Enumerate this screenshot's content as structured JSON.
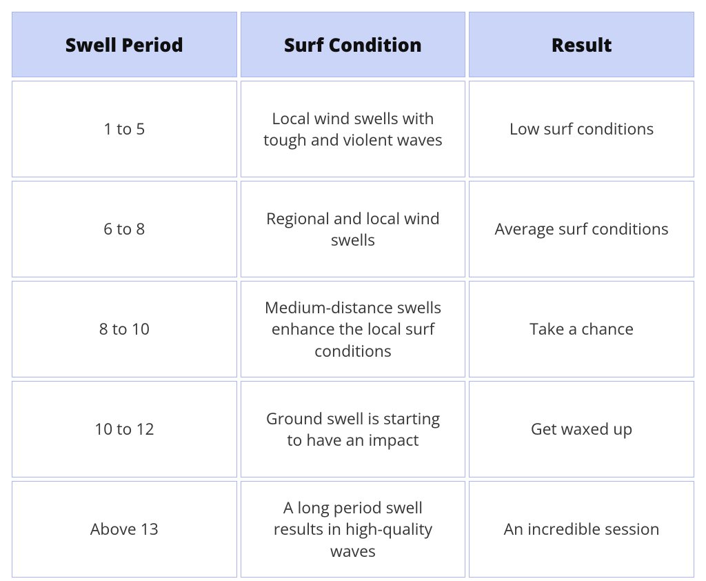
{
  "table": {
    "type": "table",
    "header_bg": "#cbd5f7",
    "border_color": "#a9b4f5",
    "cell_bg": "#ffffff",
    "header_text_color": "#0f0f10",
    "cell_text_color": "#363636",
    "header_fontsize": 27,
    "header_fontweight": 800,
    "cell_fontsize": 23,
    "line_height": 1.35,
    "columns": [
      {
        "label": "Swell Period"
      },
      {
        "label": "Surf Condition"
      },
      {
        "label": "Result"
      }
    ],
    "rows": [
      {
        "period": "1 to 5",
        "condition": "Local wind swells with tough and violent waves",
        "result": "Low surf conditions"
      },
      {
        "period": "6 to 8",
        "condition": "Regional and local wind swells",
        "result": "Average surf conditions"
      },
      {
        "period": "8 to 10",
        "condition": "Medium-distance swells enhance the local surf conditions",
        "result": "Take a chance"
      },
      {
        "period": "10 to 12",
        "condition": "Ground swell is starting to have an impact",
        "result": "Get waxed up"
      },
      {
        "period": "Above 13",
        "condition": "A long period swell results in high-quality waves",
        "result": "An incredible session"
      }
    ]
  }
}
